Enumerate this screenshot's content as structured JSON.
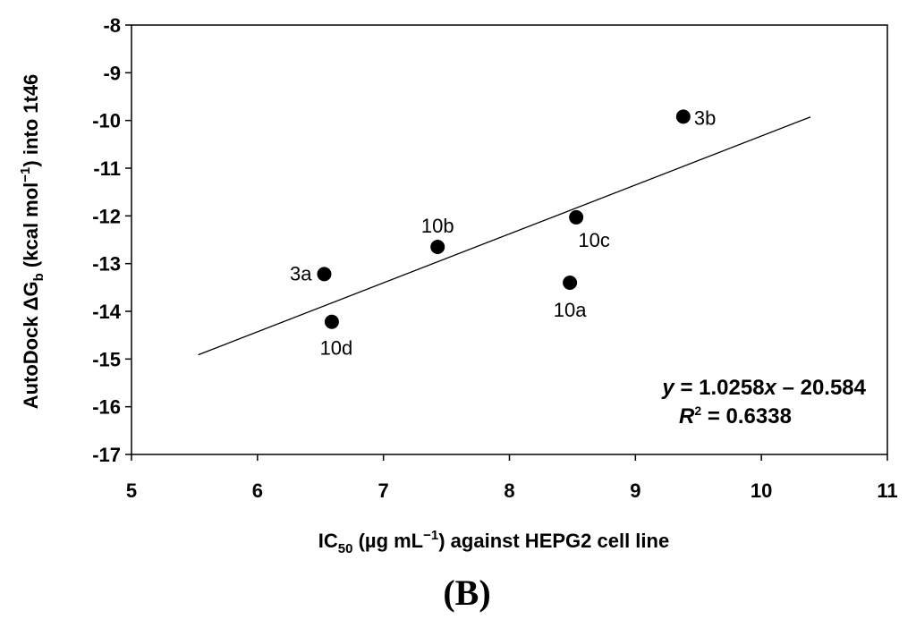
{
  "chart_data": {
    "type": "scatter",
    "xlabel": {
      "pre": "IC",
      "sub": "50",
      "post": " (µg mL",
      "sup": "−1",
      "post2": ") against HEPG2 cell line"
    },
    "ylabel": {
      "pre": "AutoDock ΔG",
      "sub": "b",
      "post": " (kcal mol",
      "sup": "−1",
      "post2": ") into 1t46"
    },
    "xlim": [
      5,
      11
    ],
    "ylim": [
      -17,
      -8
    ],
    "xticks": [
      5,
      6,
      7,
      8,
      9,
      10,
      11
    ],
    "yticks": [
      -8,
      -9,
      -10,
      -11,
      -12,
      -13,
      -14,
      -15,
      -16,
      -17
    ],
    "grid": false,
    "points": [
      {
        "label": "3a",
        "x": 6.53,
        "y": -13.22
      },
      {
        "label": "3b",
        "x": 9.38,
        "y": -9.92
      },
      {
        "label": "10a",
        "x": 8.48,
        "y": -13.4
      },
      {
        "label": "10b",
        "x": 7.43,
        "y": -12.65
      },
      {
        "label": "10c",
        "x": 8.53,
        "y": -12.03
      },
      {
        "label": "10d",
        "x": 6.59,
        "y": -14.22
      }
    ],
    "trendline": {
      "slope": 1.0258,
      "intercept": -20.584,
      "x_range": [
        5.53,
        10.39
      ]
    },
    "equation": {
      "y": "y",
      "eq1": " = 1.0258",
      "x": "x",
      "eq2": " – 20.584"
    },
    "r2": {
      "r": "R",
      "sup": "2",
      "val": " = 0.6338"
    }
  },
  "panel_label": "(B)"
}
